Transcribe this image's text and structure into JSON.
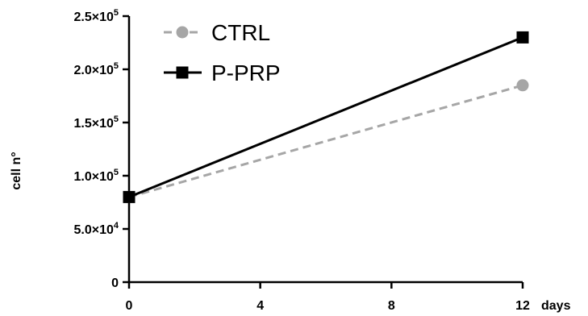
{
  "chart_data": {
    "type": "line",
    "xlabel": "days",
    "ylabel": "cell n°",
    "xlim": [
      0,
      12
    ],
    "ylim": [
      0,
      250000
    ],
    "x_ticks": [
      0,
      4,
      8,
      12
    ],
    "x_tick_labels": [
      "0",
      "4",
      "8",
      "12"
    ],
    "y_ticks": [
      0,
      50000,
      100000,
      150000,
      200000,
      250000
    ],
    "y_tick_labels": [
      {
        "mantissa": "0",
        "exp": ""
      },
      {
        "mantissa": "5.0×10",
        "exp": "4"
      },
      {
        "mantissa": "1.0×10",
        "exp": "5"
      },
      {
        "mantissa": "1.5×10",
        "exp": "5"
      },
      {
        "mantissa": "2.0×10",
        "exp": "5"
      },
      {
        "mantissa": "2.5×10",
        "exp": "5"
      }
    ],
    "grid": false,
    "legend_position": "top-left",
    "series": [
      {
        "name": "CTRL",
        "color": "#a6a6a6",
        "marker": "circle",
        "line_style": "dashed",
        "x": [
          0,
          12
        ],
        "y": [
          80000,
          185000
        ]
      },
      {
        "name": "P-PRP",
        "color": "#000000",
        "marker": "square",
        "line_style": "solid",
        "x": [
          0,
          12
        ],
        "y": [
          80000,
          230000
        ]
      }
    ]
  }
}
